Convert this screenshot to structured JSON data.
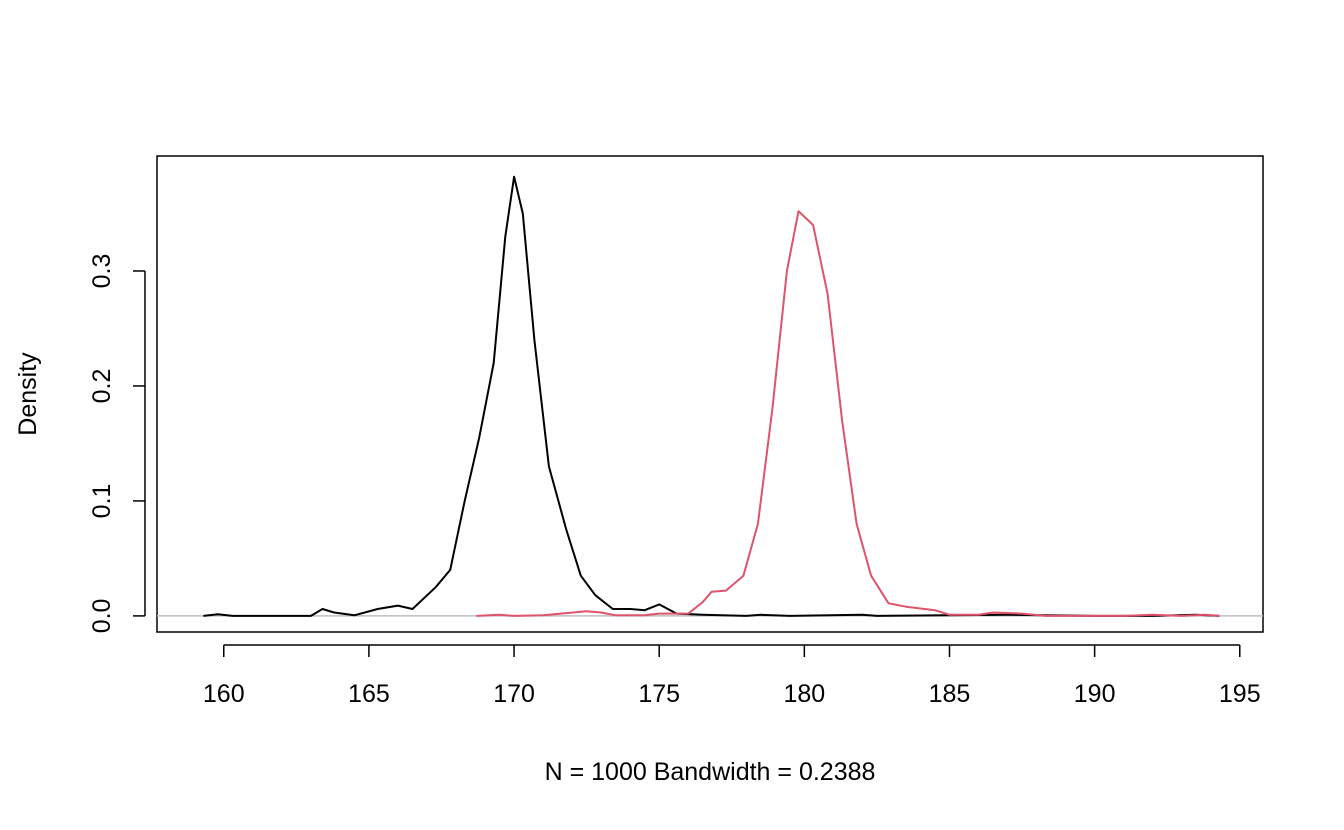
{
  "chart_data": {
    "type": "line",
    "title": "",
    "xlabel": "N = 1000   Bandwidth = 0.2388",
    "ylabel": "Density",
    "xlim": [
      157.7,
      195.8
    ],
    "ylim": [
      -0.014,
      0.4
    ],
    "x_ticks": [
      160,
      165,
      170,
      175,
      180,
      185,
      190,
      195
    ],
    "x_tick_labels": [
      "160",
      "165",
      "170",
      "175",
      "180",
      "185",
      "190",
      "195"
    ],
    "y_ticks": [
      0.0,
      0.1,
      0.2,
      0.3
    ],
    "y_tick_labels": [
      "0.0",
      "0.1",
      "0.2",
      "0.3"
    ],
    "zero_line": true,
    "zero_line_color": "#bebebe",
    "series": [
      {
        "color": "#000000",
        "points": [
          [
            159.3,
            0.0
          ],
          [
            159.8,
            0.0015
          ],
          [
            160.3,
            0.0
          ],
          [
            162.0,
            0.0
          ],
          [
            163.0,
            0.0
          ],
          [
            163.4,
            0.006
          ],
          [
            163.8,
            0.003
          ],
          [
            164.5,
            0.0005
          ],
          [
            165.3,
            0.006
          ],
          [
            166.0,
            0.009
          ],
          [
            166.5,
            0.006
          ],
          [
            167.3,
            0.025
          ],
          [
            167.8,
            0.04
          ],
          [
            168.3,
            0.1
          ],
          [
            168.8,
            0.155
          ],
          [
            169.3,
            0.22
          ],
          [
            169.7,
            0.33
          ],
          [
            170.0,
            0.382
          ],
          [
            170.3,
            0.35
          ],
          [
            170.7,
            0.24
          ],
          [
            171.2,
            0.13
          ],
          [
            171.8,
            0.075
          ],
          [
            172.3,
            0.035
          ],
          [
            172.8,
            0.018
          ],
          [
            173.4,
            0.006
          ],
          [
            174.0,
            0.006
          ],
          [
            174.5,
            0.005
          ],
          [
            175.0,
            0.01
          ],
          [
            175.6,
            0.002
          ],
          [
            176.5,
            0.001
          ],
          [
            178.0,
            0.0
          ],
          [
            178.5,
            0.001
          ],
          [
            179.5,
            0.0
          ],
          [
            182.0,
            0.001
          ],
          [
            182.5,
            0.0
          ],
          [
            187.0,
            0.001
          ],
          [
            190.0,
            0.0
          ],
          [
            192.0,
            0.0
          ],
          [
            193.5,
            0.001
          ],
          [
            194.3,
            0.0
          ]
        ]
      },
      {
        "color": "#df536b",
        "points": [
          [
            168.7,
            0.0
          ],
          [
            169.5,
            0.001
          ],
          [
            170.0,
            0.0
          ],
          [
            171.0,
            0.0005
          ],
          [
            172.5,
            0.004
          ],
          [
            173.0,
            0.003
          ],
          [
            173.5,
            0.0005
          ],
          [
            174.5,
            0.0005
          ],
          [
            175.0,
            0.002
          ],
          [
            176.0,
            0.002
          ],
          [
            176.5,
            0.012
          ],
          [
            176.8,
            0.021
          ],
          [
            177.3,
            0.022
          ],
          [
            177.9,
            0.035
          ],
          [
            178.4,
            0.08
          ],
          [
            178.9,
            0.18
          ],
          [
            179.4,
            0.3
          ],
          [
            179.8,
            0.352
          ],
          [
            180.3,
            0.34
          ],
          [
            180.8,
            0.28
          ],
          [
            181.3,
            0.17
          ],
          [
            181.8,
            0.08
          ],
          [
            182.3,
            0.035
          ],
          [
            182.9,
            0.011
          ],
          [
            183.5,
            0.008
          ],
          [
            184.5,
            0.005
          ],
          [
            185.0,
            0.001
          ],
          [
            186.0,
            0.001
          ],
          [
            186.5,
            0.003
          ],
          [
            187.5,
            0.002
          ],
          [
            188.3,
            0.0
          ],
          [
            191.0,
            0.0
          ],
          [
            192.0,
            0.001
          ],
          [
            193.0,
            0.0
          ],
          [
            193.8,
            0.001
          ],
          [
            194.3,
            0.0
          ]
        ]
      }
    ]
  }
}
